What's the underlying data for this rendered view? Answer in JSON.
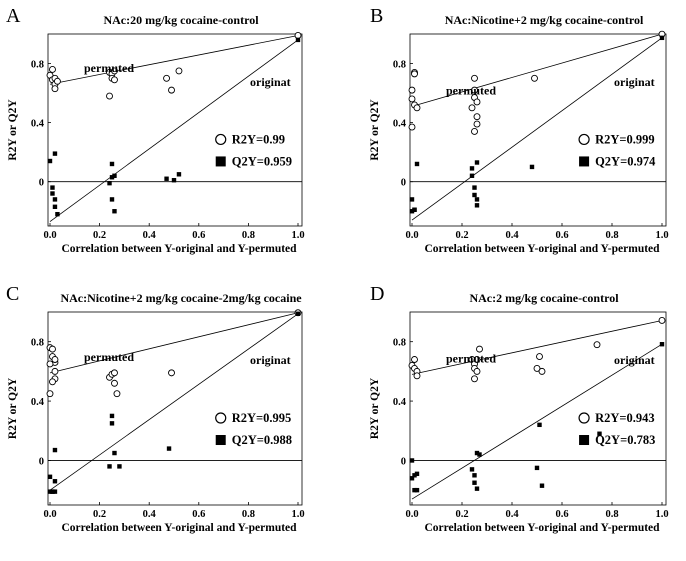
{
  "chart_data": [
    {
      "panel": "A",
      "type": "scatter",
      "title": "NAc:20 mg/kg cocaine-control",
      "xlabel": "Correlation between Y-original and Y-permuted",
      "ylabel": "R2Y or Q2Y",
      "xticks": [
        "0.0",
        "0.2",
        "0.4",
        "0.6",
        "0.8",
        "1.0"
      ],
      "yticks": [
        "0.8",
        "0.4",
        "0"
      ],
      "xlim": [
        0,
        1
      ],
      "ylim": [
        -0.3,
        1.0
      ],
      "annotations": {
        "permuted": "permuted",
        "original": "originat"
      },
      "series": [
        {
          "name": "R2Y=0.99",
          "marker": "open-circle",
          "x": [
            0.0,
            0.01,
            0.01,
            0.02,
            0.02,
            0.02,
            0.03,
            0.24,
            0.25,
            0.25,
            0.26,
            0.26,
            0.24,
            0.47,
            0.49,
            0.52,
            1.0
          ],
          "y": [
            0.72,
            0.76,
            0.69,
            0.7,
            0.66,
            0.63,
            0.68,
            0.74,
            0.73,
            0.7,
            0.75,
            0.69,
            0.58,
            0.7,
            0.62,
            0.75,
            0.99
          ],
          "fit": [
            0.66,
            0.99
          ]
        },
        {
          "name": "Q2Y=0.959",
          "marker": "filled-square",
          "x": [
            0.0,
            0.01,
            0.01,
            0.02,
            0.02,
            0.02,
            0.03,
            0.24,
            0.25,
            0.25,
            0.26,
            0.25,
            0.26,
            0.47,
            0.5,
            0.52,
            1.0
          ],
          "y": [
            0.14,
            -0.04,
            -0.08,
            -0.12,
            -0.17,
            0.19,
            -0.22,
            -0.01,
            0.12,
            0.03,
            0.04,
            -0.12,
            -0.2,
            0.02,
            0.01,
            0.05,
            0.96
          ],
          "fit": [
            -0.27,
            0.96
          ]
        }
      ]
    },
    {
      "panel": "B",
      "type": "scatter",
      "title": "NAc:Nicotine+2 mg/kg cocaine-control",
      "xlabel": "Correlation between Y-original and Y-permuted",
      "ylabel": "R2Y or Q2Y",
      "xticks": [
        "0.0",
        "0.2",
        "0.4",
        "0.6",
        "0.8",
        "1.0"
      ],
      "yticks": [
        "0.8",
        "0.4",
        "0"
      ],
      "xlim": [
        0,
        1
      ],
      "ylim": [
        -0.3,
        1.0
      ],
      "annotations": {
        "permuted": "permuted",
        "original": "originat"
      },
      "series": [
        {
          "name": "R2Y=0.999",
          "marker": "open-circle",
          "x": [
            0.0,
            0.0,
            0.01,
            0.01,
            0.01,
            0.02,
            0.0,
            0.25,
            0.25,
            0.25,
            0.26,
            0.26,
            0.26,
            0.25,
            0.24,
            0.49,
            1.0
          ],
          "y": [
            0.62,
            0.56,
            0.52,
            0.74,
            0.73,
            0.5,
            0.37,
            0.7,
            0.62,
            0.57,
            0.54,
            0.44,
            0.39,
            0.34,
            0.5,
            0.7,
            0.999
          ],
          "fit": [
            0.51,
            0.999
          ]
        },
        {
          "name": "Q2Y=0.974",
          "marker": "filled-square",
          "x": [
            0.0,
            0.0,
            0.01,
            0.01,
            0.02,
            0.24,
            0.24,
            0.25,
            0.25,
            0.26,
            0.26,
            0.26,
            0.48,
            1.0
          ],
          "y": [
            -0.12,
            -0.2,
            -0.19,
            -0.19,
            0.12,
            0.09,
            0.04,
            -0.04,
            -0.09,
            -0.12,
            -0.16,
            0.13,
            0.1,
            0.974
          ],
          "fit": [
            -0.26,
            0.974
          ]
        }
      ]
    },
    {
      "panel": "C",
      "type": "scatter",
      "title": "NAc:Nicotine+2 mg/kg cocaine-2mg/kg cocaine",
      "xlabel": "Correlation between Y-original and Y-permuted",
      "ylabel": "R2Y or Q2Y",
      "xticks": [
        "0.0",
        "0.2",
        "0.4",
        "0.6",
        "0.8",
        "1.0"
      ],
      "yticks": [
        "0.8",
        "0.4",
        "0"
      ],
      "xlim": [
        0,
        1
      ],
      "ylim": [
        -0.3,
        1.0
      ],
      "annotations": {
        "permuted": "permuted",
        "original": "originat"
      },
      "series": [
        {
          "name": "R2Y=0.995",
          "marker": "open-circle",
          "x": [
            0.0,
            0.01,
            0.01,
            0.02,
            0.02,
            0.02,
            0.01,
            0.0,
            0.02,
            0.0,
            0.24,
            0.25,
            0.26,
            0.26,
            0.27,
            0.49,
            1.0
          ],
          "y": [
            0.76,
            0.75,
            0.7,
            0.66,
            0.6,
            0.55,
            0.53,
            0.45,
            0.68,
            0.65,
            0.56,
            0.58,
            0.59,
            0.52,
            0.45,
            0.59,
            0.995
          ],
          "fit": [
            0.59,
            0.995
          ]
        },
        {
          "name": "Q2Y=0.988",
          "marker": "filled-square",
          "x": [
            0.0,
            0.0,
            0.01,
            0.01,
            0.02,
            0.02,
            0.02,
            0.24,
            0.25,
            0.25,
            0.26,
            0.28,
            0.48,
            1.0
          ],
          "y": [
            -0.11,
            -0.21,
            -0.21,
            -0.21,
            -0.14,
            -0.21,
            0.07,
            -0.04,
            0.3,
            0.25,
            0.05,
            -0.04,
            0.08,
            0.988
          ],
          "fit": [
            -0.2,
            0.988
          ]
        }
      ]
    },
    {
      "panel": "D",
      "type": "scatter",
      "title": "NAc:2 mg/kg cocaine-control",
      "xlabel": "Correlation between Y-original and Y-permuted",
      "ylabel": "R2Y or Q2Y",
      "xticks": [
        "0.0",
        "0.2",
        "0.4",
        "0.6",
        "0.8",
        "1.0"
      ],
      "yticks": [
        "0.8",
        "0.4",
        "0"
      ],
      "xlim": [
        0,
        1
      ],
      "ylim": [
        -0.3,
        1.0
      ],
      "annotations": {
        "permuted": "permuted",
        "original": "originat"
      },
      "series": [
        {
          "name": "R2Y=0.943",
          "marker": "open-circle",
          "x": [
            0.0,
            0.01,
            0.01,
            0.02,
            0.02,
            0.24,
            0.25,
            0.25,
            0.26,
            0.26,
            0.27,
            0.25,
            0.51,
            0.5,
            0.52,
            0.74,
            1.0
          ],
          "y": [
            0.64,
            0.68,
            0.62,
            0.6,
            0.57,
            0.68,
            0.65,
            0.62,
            0.68,
            0.6,
            0.75,
            0.55,
            0.7,
            0.62,
            0.6,
            0.78,
            0.943
          ],
          "fit": [
            0.58,
            0.943
          ]
        },
        {
          "name": "Q2Y=0.783",
          "marker": "filled-square",
          "x": [
            0.0,
            0.0,
            0.01,
            0.01,
            0.02,
            0.02,
            0.24,
            0.25,
            0.25,
            0.26,
            0.26,
            0.27,
            0.5,
            0.51,
            0.52,
            0.75,
            1.0
          ],
          "y": [
            0.0,
            -0.12,
            -0.2,
            -0.1,
            -0.09,
            -0.2,
            -0.06,
            -0.1,
            -0.15,
            0.05,
            -0.19,
            0.04,
            -0.05,
            0.24,
            -0.17,
            0.18,
            0.783
          ],
          "fit": [
            -0.26,
            0.783
          ]
        }
      ]
    }
  ]
}
